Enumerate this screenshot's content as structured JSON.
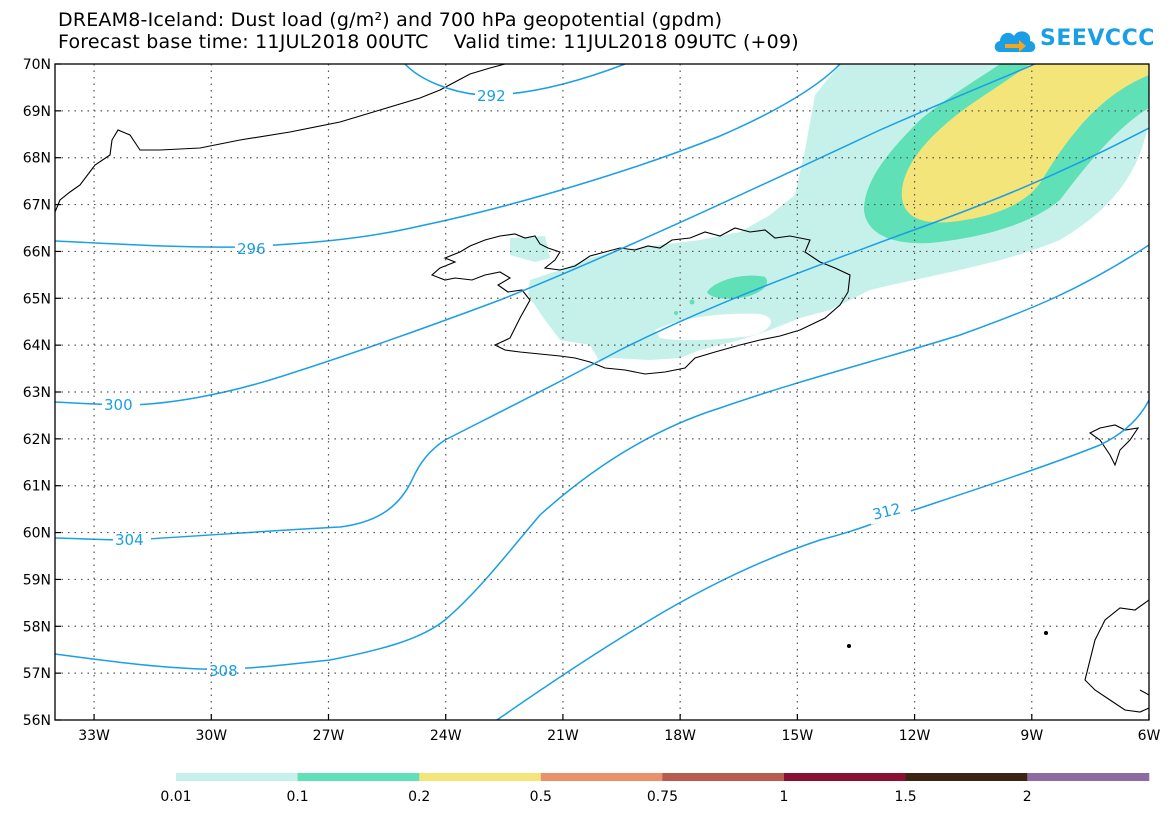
{
  "header": {
    "title_line1": "DREAM8-Iceland: Dust load (g/m²) and 700 hPa geopotential (gpdm)",
    "title_line2": "Forecast base time: 11JUL2018 00UTC    Valid time: 11JUL2018 09UTC (+09)"
  },
  "logo": {
    "text": "SEEVCCC",
    "icon": "cloud-logo-icon",
    "color": "#1a9fe6"
  },
  "map": {
    "lat_labels": [
      "70N",
      "69N",
      "68N",
      "67N",
      "66N",
      "65N",
      "64N",
      "63N",
      "62N",
      "61N",
      "60N",
      "59N",
      "58N",
      "57N",
      "56N"
    ],
    "lon_labels": [
      "33W",
      "30W",
      "27W",
      "24W",
      "21W",
      "18W",
      "15W",
      "12W",
      "9W",
      "6W"
    ],
    "lat_range": [
      56,
      70
    ],
    "lon_range": [
      -34,
      -6
    ],
    "contour_color": "#1a9fe6",
    "contour_labels": [
      "292",
      "296",
      "300",
      "304",
      "308",
      "312"
    ]
  },
  "colorbar": {
    "colors": [
      "#c6f1ea",
      "#5fe0b6",
      "#f4e57a",
      "#e8916a",
      "#b95b4f",
      "#8a0f33",
      "#3d2412",
      "#8e6aa3"
    ],
    "labels": [
      "0.01",
      "0.1",
      "0.2",
      "0.5",
      "0.75",
      "1",
      "1.5",
      "2"
    ]
  }
}
